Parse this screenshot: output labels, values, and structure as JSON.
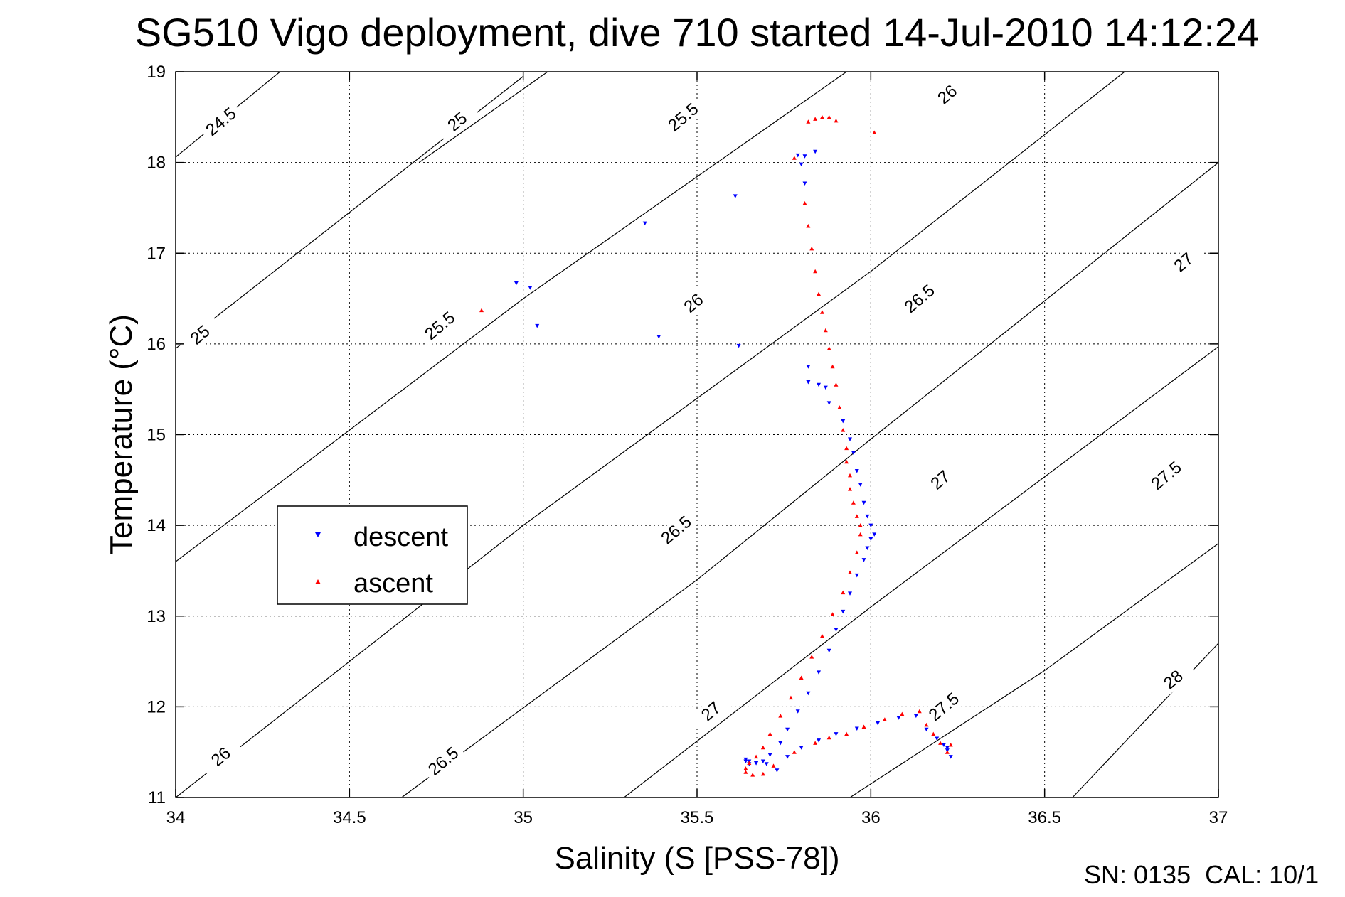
{
  "chart_data": {
    "type": "scatter",
    "title": "SG510 Vigo deployment, dive 710 started 14-Jul-2010 14:12:24",
    "xlabel": "Salinity (S [PSS-78])",
    "ylabel": "Temperature (°C)",
    "xlim": [
      34,
      37
    ],
    "ylim": [
      11,
      19
    ],
    "xticks": [
      "34",
      "34.5",
      "35",
      "35.5",
      "36",
      "36.5",
      "37"
    ],
    "yticks": [
      "11",
      "12",
      "13",
      "14",
      "15",
      "16",
      "17",
      "18",
      "19"
    ],
    "grid": true,
    "legend": "left-middle",
    "colors": {
      "descent": "#0000ff",
      "ascent": "#ff0000",
      "contours": "#000000"
    },
    "contours": [
      {
        "sigma": 24.5,
        "label": "24.5",
        "points": [
          [
            34.0,
            18.06
          ],
          [
            34.3,
            19.0
          ]
        ]
      },
      {
        "sigma": 25.0,
        "label": "25",
        "points": [
          [
            34.0,
            15.95
          ],
          [
            35.0,
            18.95
          ]
        ]
      },
      {
        "sigma": 25.0,
        "label": "25",
        "points": [
          [
            34.7,
            18.0
          ],
          [
            35.07,
            19.0
          ]
        ]
      },
      {
        "sigma": 25.5,
        "label": "25.5",
        "points": [
          [
            34.0,
            13.6
          ],
          [
            35.0,
            16.5
          ],
          [
            35.93,
            19.0
          ]
        ]
      },
      {
        "sigma": 26.0,
        "label": "26",
        "points": [
          [
            34.0,
            11.0
          ],
          [
            35.0,
            14.0
          ],
          [
            36.0,
            16.8
          ],
          [
            36.73,
            19.0
          ]
        ]
      },
      {
        "sigma": 26.5,
        "label": "26.5",
        "points": [
          [
            34.65,
            11.0
          ],
          [
            35.5,
            13.4
          ],
          [
            36.0,
            14.95
          ],
          [
            37.0,
            18.0
          ],
          [
            37.0,
            18.0
          ]
        ]
      },
      {
        "sigma": 27.0,
        "label": "27",
        "points": [
          [
            35.29,
            11.0
          ],
          [
            36.0,
            13.1
          ],
          [
            37.0,
            15.97
          ]
        ]
      },
      {
        "sigma": 27.5,
        "label": "27.5",
        "points": [
          [
            35.94,
            11.0
          ],
          [
            36.5,
            12.4
          ],
          [
            37.0,
            13.8
          ]
        ]
      },
      {
        "sigma": 28.0,
        "label": "28",
        "points": [
          [
            36.58,
            11.0
          ],
          [
            37.0,
            12.7
          ]
        ]
      }
    ],
    "contour_labels": [
      {
        "label": "24.5",
        "x": 34.13,
        "y": 18.45
      },
      {
        "label": "25",
        "x": 34.81,
        "y": 18.45
      },
      {
        "label": "25.5",
        "x": 35.46,
        "y": 18.5
      },
      {
        "label": "26",
        "x": 36.22,
        "y": 18.75
      },
      {
        "label": "25",
        "x": 34.07,
        "y": 16.1
      },
      {
        "label": "25.5",
        "x": 34.76,
        "y": 16.2
      },
      {
        "label": "26",
        "x": 35.49,
        "y": 16.45
      },
      {
        "label": "26.5",
        "x": 36.14,
        "y": 16.5
      },
      {
        "label": "27",
        "x": 36.9,
        "y": 16.9
      },
      {
        "label": "26.5",
        "x": 35.44,
        "y": 13.95
      },
      {
        "label": "27",
        "x": 36.2,
        "y": 14.5
      },
      {
        "label": "27.5",
        "x": 36.85,
        "y": 14.55
      },
      {
        "label": "26",
        "x": 34.13,
        "y": 11.45
      },
      {
        "label": "26.5",
        "x": 34.77,
        "y": 11.4
      },
      {
        "label": "27",
        "x": 35.54,
        "y": 11.95
      },
      {
        "label": "27.5",
        "x": 36.21,
        "y": 12.0
      },
      {
        "label": "28",
        "x": 36.87,
        "y": 12.3
      }
    ],
    "series": [
      {
        "name": "descent",
        "marker": "triangle-down",
        "x": [
          34.98,
          35.02,
          35.04,
          35.35,
          35.39,
          35.61,
          35.62,
          35.79,
          35.8,
          35.81,
          35.82,
          35.84,
          35.81,
          35.82,
          35.85,
          35.87,
          35.88,
          35.92,
          35.94,
          35.95,
          35.96,
          35.97,
          35.98,
          35.99,
          36.0,
          36.01,
          36.0,
          35.99,
          35.98,
          35.96,
          35.94,
          35.92,
          35.9,
          35.88,
          35.85,
          35.82,
          35.79,
          35.76,
          35.74,
          35.71,
          35.69,
          35.67,
          35.65,
          35.64,
          35.64,
          35.65,
          35.67,
          35.7,
          35.73,
          35.76,
          35.8,
          35.85,
          35.9,
          35.96,
          36.02,
          36.08,
          36.13,
          36.16,
          36.19,
          36.21,
          36.22,
          36.23,
          36.22
        ],
        "y": [
          16.67,
          16.62,
          16.2,
          17.33,
          16.08,
          17.63,
          15.98,
          18.08,
          17.98,
          18.07,
          15.75,
          18.12,
          17.77,
          15.58,
          15.55,
          15.52,
          15.35,
          15.15,
          14.95,
          14.8,
          14.6,
          14.45,
          14.25,
          14.1,
          14.0,
          13.9,
          13.85,
          13.75,
          13.62,
          13.45,
          13.25,
          13.05,
          12.85,
          12.62,
          12.38,
          12.15,
          11.95,
          11.75,
          11.6,
          11.47,
          11.4,
          11.38,
          11.37,
          11.4,
          11.42,
          11.4,
          11.38,
          11.37,
          11.3,
          11.45,
          11.55,
          11.63,
          11.7,
          11.76,
          11.82,
          11.88,
          11.9,
          11.75,
          11.65,
          11.58,
          11.52,
          11.45,
          11.55
        ]
      },
      {
        "name": "ascent",
        "marker": "triangle-up",
        "x": [
          34.88,
          35.82,
          35.84,
          35.86,
          35.88,
          35.9,
          36.01,
          35.78,
          35.81,
          35.82,
          35.83,
          35.84,
          35.85,
          35.86,
          35.87,
          35.88,
          35.89,
          35.9,
          35.91,
          35.92,
          35.93,
          35.93,
          35.94,
          35.94,
          35.95,
          35.96,
          35.97,
          35.97,
          35.96,
          35.94,
          35.92,
          35.89,
          35.86,
          35.83,
          35.8,
          35.77,
          35.74,
          35.71,
          35.69,
          35.67,
          35.65,
          35.64,
          35.64,
          35.66,
          35.69,
          35.72,
          35.78,
          35.84,
          35.88,
          35.93,
          35.98,
          36.04,
          36.09,
          36.14,
          36.16,
          36.18,
          36.2,
          36.22,
          36.23
        ],
        "y": [
          16.37,
          18.45,
          18.48,
          18.5,
          18.5,
          18.46,
          18.33,
          18.05,
          17.55,
          17.3,
          17.05,
          16.8,
          16.55,
          16.35,
          16.15,
          15.95,
          15.75,
          15.55,
          15.3,
          15.05,
          14.85,
          14.7,
          14.55,
          14.4,
          14.25,
          14.1,
          14.0,
          13.9,
          13.7,
          13.48,
          13.26,
          13.02,
          12.78,
          12.55,
          12.32,
          12.1,
          11.9,
          11.7,
          11.55,
          11.45,
          11.38,
          11.32,
          11.28,
          11.25,
          11.26,
          11.35,
          11.5,
          11.6,
          11.66,
          11.7,
          11.78,
          11.86,
          11.92,
          11.95,
          11.8,
          11.7,
          11.6,
          11.5,
          11.58
        ]
      }
    ],
    "footer": "SN: 0135  CAL: 10/1"
  }
}
